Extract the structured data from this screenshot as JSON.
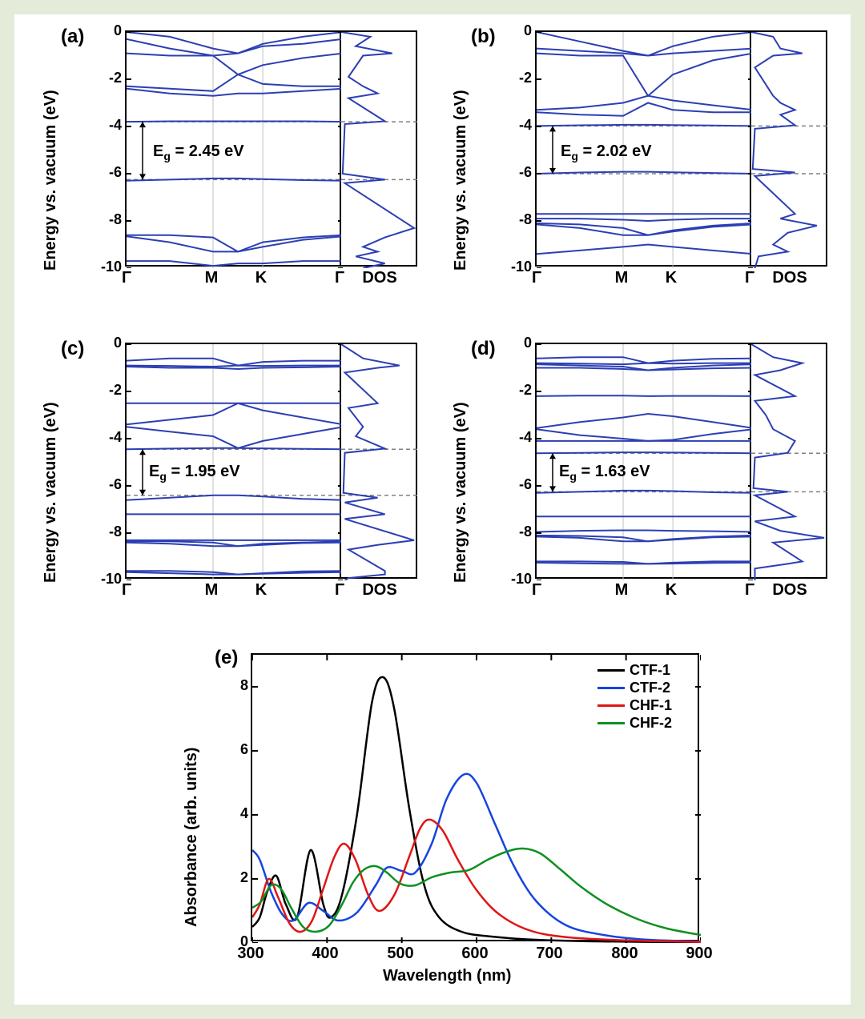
{
  "background_color": "#e4ecd9",
  "figure_background": "#ffffff",
  "band_color": "#2c3fb3",
  "grid_color": "#c0c0c0",
  "dashed_color": "#808080",
  "axis_font_size": 20,
  "tick_font_size": 18,
  "panels": {
    "a": {
      "label": "(a)",
      "eg_text": "E",
      "eg_sub": "g",
      "eg_val": " = 2.45 eV",
      "vbm": -6.25,
      "cbm": -3.8
    },
    "b": {
      "label": "(b)",
      "eg_text": "E",
      "eg_sub": "g",
      "eg_val": " = 2.02 eV",
      "vbm": -6.0,
      "cbm": -3.98
    },
    "c": {
      "label": "(c)",
      "eg_text": "E",
      "eg_sub": "g",
      "eg_val": " = 1.95 eV",
      "vbm": -6.4,
      "cbm": -4.45
    },
    "d": {
      "label": "(d)",
      "eg_text": "E",
      "eg_sub": "g",
      "eg_val": " = 1.63 eV",
      "vbm": -6.25,
      "cbm": -4.62
    }
  },
  "band_yaxis": {
    "label": "Energy vs. vacuum (eV)",
    "ylim": [
      -10,
      0
    ],
    "ticks": [
      0,
      -2,
      -4,
      -6,
      -8,
      -10
    ]
  },
  "band_xaxis": {
    "ticks": [
      "Γ",
      "M",
      "K",
      "Γ"
    ],
    "dos_label": "DOS"
  },
  "bands": {
    "a": [
      [
        0,
        -0.2,
        -0.7,
        -0.9,
        -0.5,
        -0.2,
        0
      ],
      [
        -0.3,
        -0.7,
        -1.0,
        -0.9,
        -0.6,
        -0.5,
        -0.3
      ],
      [
        -0.9,
        -1.0,
        -1.0,
        -1.8,
        -1.4,
        -1.1,
        -0.9
      ],
      [
        -2.3,
        -2.4,
        -2.5,
        -1.8,
        -2.2,
        -2.3,
        -2.3
      ],
      [
        -2.4,
        -2.6,
        -2.7,
        -2.6,
        -2.6,
        -2.5,
        -2.4
      ],
      [
        -3.8,
        -3.78,
        -3.78,
        -3.78,
        -3.78,
        -3.78,
        -3.8
      ],
      [
        -6.3,
        -6.25,
        -6.2,
        -6.2,
        -6.23,
        -6.27,
        -6.3
      ],
      [
        -8.6,
        -8.6,
        -8.7,
        -9.3,
        -8.9,
        -8.7,
        -8.6
      ],
      [
        -8.65,
        -8.9,
        -9.3,
        -9.3,
        -9.1,
        -8.8,
        -8.65
      ],
      [
        -9.7,
        -9.7,
        -9.9,
        -9.8,
        -9.8,
        -9.7,
        -9.7
      ]
    ],
    "b": [
      [
        0,
        -0.4,
        -0.8,
        -1.0,
        -0.6,
        -0.2,
        0
      ],
      [
        -0.7,
        -0.8,
        -0.9,
        -1.0,
        -0.9,
        -0.8,
        -0.7
      ],
      [
        -0.9,
        -1.0,
        -1.0,
        -2.7,
        -1.8,
        -1.2,
        -0.9
      ],
      [
        -3.3,
        -3.2,
        -3.0,
        -2.7,
        -2.9,
        -3.1,
        -3.3
      ],
      [
        -3.4,
        -3.5,
        -3.55,
        -3.0,
        -3.3,
        -3.4,
        -3.4
      ],
      [
        -3.98,
        -3.95,
        -3.93,
        -3.93,
        -3.94,
        -3.96,
        -3.98
      ],
      [
        -6.0,
        -5.95,
        -5.92,
        -5.92,
        -5.94,
        -5.97,
        -6.0
      ],
      [
        -7.7,
        -7.7,
        -7.7,
        -7.7,
        -7.7,
        -7.7,
        -7.7
      ],
      [
        -7.9,
        -7.9,
        -7.95,
        -8.0,
        -7.95,
        -7.9,
        -7.9
      ],
      [
        -8.1,
        -8.15,
        -8.3,
        -8.6,
        -8.4,
        -8.2,
        -8.1
      ],
      [
        -8.15,
        -8.3,
        -8.6,
        -8.6,
        -8.45,
        -8.25,
        -8.15
      ],
      [
        -9.4,
        -9.25,
        -9.1,
        -9.0,
        -9.1,
        -9.25,
        -9.4
      ]
    ],
    "c": [
      [
        -0.7,
        -0.6,
        -0.6,
        -0.9,
        -0.75,
        -0.7,
        -0.7
      ],
      [
        -0.9,
        -0.92,
        -0.95,
        -0.9,
        -0.92,
        -0.9,
        -0.9
      ],
      [
        -0.95,
        -1.0,
        -1.0,
        -1.05,
        -1.0,
        -0.98,
        -0.95
      ],
      [
        -2.5,
        -2.5,
        -2.5,
        -2.5,
        -2.5,
        -2.5,
        -2.5
      ],
      [
        -3.4,
        -3.2,
        -3.0,
        -2.5,
        -2.8,
        -3.1,
        -3.4
      ],
      [
        -3.5,
        -3.7,
        -3.9,
        -4.4,
        -4.1,
        -3.8,
        -3.5
      ],
      [
        -4.45,
        -4.42,
        -4.4,
        -4.4,
        -4.41,
        -4.43,
        -4.45
      ],
      [
        -6.6,
        -6.5,
        -6.4,
        -6.4,
        -6.45,
        -6.55,
        -6.6
      ],
      [
        -7.2,
        -7.2,
        -7.2,
        -7.2,
        -7.2,
        -7.2,
        -7.2
      ],
      [
        -8.3,
        -8.3,
        -8.3,
        -8.3,
        -8.3,
        -8.3,
        -8.3
      ],
      [
        -8.35,
        -8.35,
        -8.4,
        -8.55,
        -8.45,
        -8.4,
        -8.35
      ],
      [
        -8.4,
        -8.45,
        -8.55,
        -8.55,
        -8.5,
        -8.42,
        -8.4
      ],
      [
        -9.6,
        -9.6,
        -9.65,
        -9.75,
        -9.7,
        -9.62,
        -9.6
      ],
      [
        -9.65,
        -9.7,
        -9.75,
        -9.75,
        -9.72,
        -9.68,
        -9.65
      ]
    ],
    "d": [
      [
        -0.6,
        -0.55,
        -0.55,
        -0.8,
        -0.7,
        -0.62,
        -0.6
      ],
      [
        -0.8,
        -0.82,
        -0.85,
        -0.8,
        -0.82,
        -0.8,
        -0.8
      ],
      [
        -0.85,
        -0.9,
        -0.95,
        -1.1,
        -1.0,
        -0.9,
        -0.85
      ],
      [
        -1.0,
        -1.0,
        -1.05,
        -1.1,
        -1.07,
        -1.02,
        -1.0
      ],
      [
        -2.2,
        -2.18,
        -2.18,
        -2.2,
        -2.19,
        -2.19,
        -2.2
      ],
      [
        -3.55,
        -3.3,
        -3.1,
        -2.95,
        -3.05,
        -3.3,
        -3.55
      ],
      [
        -3.6,
        -3.85,
        -4.0,
        -4.1,
        -4.05,
        -3.8,
        -3.6
      ],
      [
        -4.1,
        -4.1,
        -4.1,
        -4.1,
        -4.1,
        -4.1,
        -4.1
      ],
      [
        -4.62,
        -4.6,
        -4.58,
        -4.58,
        -4.59,
        -4.6,
        -4.62
      ],
      [
        -6.3,
        -6.25,
        -6.2,
        -6.2,
        -6.22,
        -6.27,
        -6.3
      ],
      [
        -7.3,
        -7.3,
        -7.3,
        -7.3,
        -7.3,
        -7.3,
        -7.3
      ],
      [
        -7.95,
        -7.9,
        -7.88,
        -7.88,
        -7.9,
        -7.92,
        -7.95
      ],
      [
        -8.1,
        -8.12,
        -8.18,
        -8.35,
        -8.25,
        -8.15,
        -8.1
      ],
      [
        -8.15,
        -8.2,
        -8.35,
        -8.35,
        -8.28,
        -8.18,
        -8.15
      ],
      [
        -9.2,
        -9.2,
        -9.22,
        -9.3,
        -9.25,
        -9.2,
        -9.2
      ],
      [
        -9.25,
        -9.28,
        -9.3,
        -9.3,
        -9.29,
        -9.26,
        -9.25
      ]
    ]
  },
  "dos": {
    "a": [
      [
        0,
        0
      ],
      [
        -0.2,
        0.4
      ],
      [
        -0.6,
        0.2
      ],
      [
        -0.9,
        0.7
      ],
      [
        -1.0,
        0.3
      ],
      [
        -1.9,
        0.1
      ],
      [
        -2.3,
        0.3
      ],
      [
        -2.6,
        0.5
      ],
      [
        -2.8,
        0.1
      ],
      [
        -3.78,
        0.6
      ],
      [
        -3.9,
        0.05
      ],
      [
        -6.0,
        0.02
      ],
      [
        -6.25,
        0.6
      ],
      [
        -6.4,
        0.05
      ],
      [
        -8.3,
        1.0
      ],
      [
        -8.7,
        0.6
      ],
      [
        -9.1,
        0.3
      ],
      [
        -9.3,
        0.5
      ],
      [
        -9.5,
        0.2
      ],
      [
        -9.8,
        0.6
      ],
      [
        -10,
        0.3
      ]
    ],
    "b": [
      [
        0,
        0
      ],
      [
        -0.2,
        0.3
      ],
      [
        -0.7,
        0.4
      ],
      [
        -0.9,
        0.7
      ],
      [
        -1.0,
        0.3
      ],
      [
        -1.5,
        0.05
      ],
      [
        -2.7,
        0.3
      ],
      [
        -3.0,
        0.4
      ],
      [
        -3.3,
        0.6
      ],
      [
        -3.5,
        0.4
      ],
      [
        -3.95,
        0.6
      ],
      [
        -4.1,
        0.05
      ],
      [
        -5.8,
        0.02
      ],
      [
        -5.95,
        0.6
      ],
      [
        -6.1,
        0.05
      ],
      [
        -7.7,
        0.6
      ],
      [
        -7.9,
        0.4
      ],
      [
        -8.2,
        0.9
      ],
      [
        -8.5,
        0.5
      ],
      [
        -9.0,
        0.3
      ],
      [
        -9.3,
        0.5
      ],
      [
        -9.5,
        0.1
      ],
      [
        -10,
        0.05
      ]
    ],
    "c": [
      [
        0,
        0
      ],
      [
        -0.6,
        0.3
      ],
      [
        -0.9,
        0.8
      ],
      [
        -1.0,
        0.5
      ],
      [
        -1.2,
        0.05
      ],
      [
        -2.5,
        0.5
      ],
      [
        -2.7,
        0.1
      ],
      [
        -3.1,
        0.2
      ],
      [
        -3.5,
        0.3
      ],
      [
        -3.9,
        0.2
      ],
      [
        -4.42,
        0.6
      ],
      [
        -4.6,
        0.05
      ],
      [
        -6.3,
        0.03
      ],
      [
        -6.5,
        0.5
      ],
      [
        -6.7,
        0.05
      ],
      [
        -7.2,
        0.6
      ],
      [
        -7.4,
        0.05
      ],
      [
        -8.3,
        1.0
      ],
      [
        -8.5,
        0.5
      ],
      [
        -8.7,
        0.1
      ],
      [
        -9.6,
        0.6
      ],
      [
        -9.75,
        0.6
      ],
      [
        -9.9,
        0.1
      ],
      [
        -10,
        0.05
      ]
    ],
    "d": [
      [
        0,
        0
      ],
      [
        -0.55,
        0.3
      ],
      [
        -0.8,
        0.7
      ],
      [
        -1.0,
        0.5
      ],
      [
        -1.1,
        0.4
      ],
      [
        -1.3,
        0.05
      ],
      [
        -2.2,
        0.6
      ],
      [
        -2.4,
        0.05
      ],
      [
        -3.0,
        0.2
      ],
      [
        -3.6,
        0.3
      ],
      [
        -4.1,
        0.6
      ],
      [
        -4.6,
        0.5
      ],
      [
        -4.8,
        0.05
      ],
      [
        -6.1,
        0.03
      ],
      [
        -6.25,
        0.5
      ],
      [
        -6.4,
        0.05
      ],
      [
        -7.3,
        0.6
      ],
      [
        -7.5,
        0.05
      ],
      [
        -7.9,
        0.4
      ],
      [
        -8.2,
        1.0
      ],
      [
        -8.4,
        0.3
      ],
      [
        -9.2,
        0.7
      ],
      [
        -9.3,
        0.5
      ],
      [
        -9.5,
        0.05
      ],
      [
        -10,
        0.05
      ]
    ]
  },
  "spectrum": {
    "label": "(e)",
    "xlabel": "Wavelength (nm)",
    "ylabel": "Absorbance (arb. units)",
    "xlim": [
      300,
      900
    ],
    "ylim": [
      0,
      9
    ],
    "yticks": [
      0,
      2,
      4,
      6,
      8
    ],
    "xticks": [
      300,
      400,
      500,
      600,
      700,
      800,
      900
    ],
    "series": [
      {
        "name": "CTF-1",
        "color": "#000000",
        "data": [
          [
            300,
            0.5
          ],
          [
            310,
            0.8
          ],
          [
            320,
            1.6
          ],
          [
            332,
            2.1
          ],
          [
            345,
            1.2
          ],
          [
            360,
            0.8
          ],
          [
            378,
            2.9
          ],
          [
            395,
            1.2
          ],
          [
            405,
            0.8
          ],
          [
            420,
            1.5
          ],
          [
            440,
            4.0
          ],
          [
            460,
            7.5
          ],
          [
            475,
            8.3
          ],
          [
            490,
            7.3
          ],
          [
            510,
            4.2
          ],
          [
            530,
            1.8
          ],
          [
            550,
            0.8
          ],
          [
            580,
            0.35
          ],
          [
            620,
            0.2
          ],
          [
            680,
            0.1
          ],
          [
            760,
            0.05
          ],
          [
            900,
            0.02
          ]
        ]
      },
      {
        "name": "CTF-2",
        "color": "#1545e0",
        "data": [
          [
            300,
            2.9
          ],
          [
            310,
            2.6
          ],
          [
            325,
            1.6
          ],
          [
            340,
            0.9
          ],
          [
            355,
            0.7
          ],
          [
            375,
            1.25
          ],
          [
            395,
            1.0
          ],
          [
            415,
            0.7
          ],
          [
            440,
            0.95
          ],
          [
            465,
            1.8
          ],
          [
            480,
            2.35
          ],
          [
            500,
            2.25
          ],
          [
            518,
            2.2
          ],
          [
            540,
            3.1
          ],
          [
            560,
            4.5
          ],
          [
            582,
            5.25
          ],
          [
            600,
            5.0
          ],
          [
            625,
            3.7
          ],
          [
            650,
            2.4
          ],
          [
            680,
            1.3
          ],
          [
            720,
            0.55
          ],
          [
            770,
            0.25
          ],
          [
            830,
            0.1
          ],
          [
            900,
            0.05
          ]
        ]
      },
      {
        "name": "CHF-1",
        "color": "#e01515",
        "data": [
          [
            300,
            0.8
          ],
          [
            310,
            1.2
          ],
          [
            322,
            2.0
          ],
          [
            335,
            1.4
          ],
          [
            350,
            0.6
          ],
          [
            365,
            0.35
          ],
          [
            380,
            0.7
          ],
          [
            395,
            1.7
          ],
          [
            410,
            2.7
          ],
          [
            423,
            3.1
          ],
          [
            438,
            2.6
          ],
          [
            455,
            1.5
          ],
          [
            470,
            1.0
          ],
          [
            490,
            1.5
          ],
          [
            510,
            2.7
          ],
          [
            525,
            3.6
          ],
          [
            538,
            3.85
          ],
          [
            555,
            3.5
          ],
          [
            575,
            2.6
          ],
          [
            600,
            1.65
          ],
          [
            630,
            0.9
          ],
          [
            670,
            0.4
          ],
          [
            720,
            0.18
          ],
          [
            800,
            0.08
          ],
          [
            900,
            0.03
          ]
        ]
      },
      {
        "name": "CHF-2",
        "color": "#0d9020",
        "data": [
          [
            300,
            1.1
          ],
          [
            312,
            1.3
          ],
          [
            325,
            1.8
          ],
          [
            338,
            1.7
          ],
          [
            352,
            1.1
          ],
          [
            368,
            0.5
          ],
          [
            385,
            0.35
          ],
          [
            403,
            0.55
          ],
          [
            420,
            1.2
          ],
          [
            435,
            1.9
          ],
          [
            450,
            2.3
          ],
          [
            465,
            2.4
          ],
          [
            480,
            2.2
          ],
          [
            498,
            1.85
          ],
          [
            518,
            1.8
          ],
          [
            540,
            2.05
          ],
          [
            565,
            2.2
          ],
          [
            590,
            2.28
          ],
          [
            615,
            2.6
          ],
          [
            640,
            2.85
          ],
          [
            662,
            2.95
          ],
          [
            685,
            2.8
          ],
          [
            712,
            2.3
          ],
          [
            740,
            1.75
          ],
          [
            775,
            1.2
          ],
          [
            815,
            0.75
          ],
          [
            855,
            0.45
          ],
          [
            900,
            0.25
          ]
        ]
      }
    ]
  }
}
